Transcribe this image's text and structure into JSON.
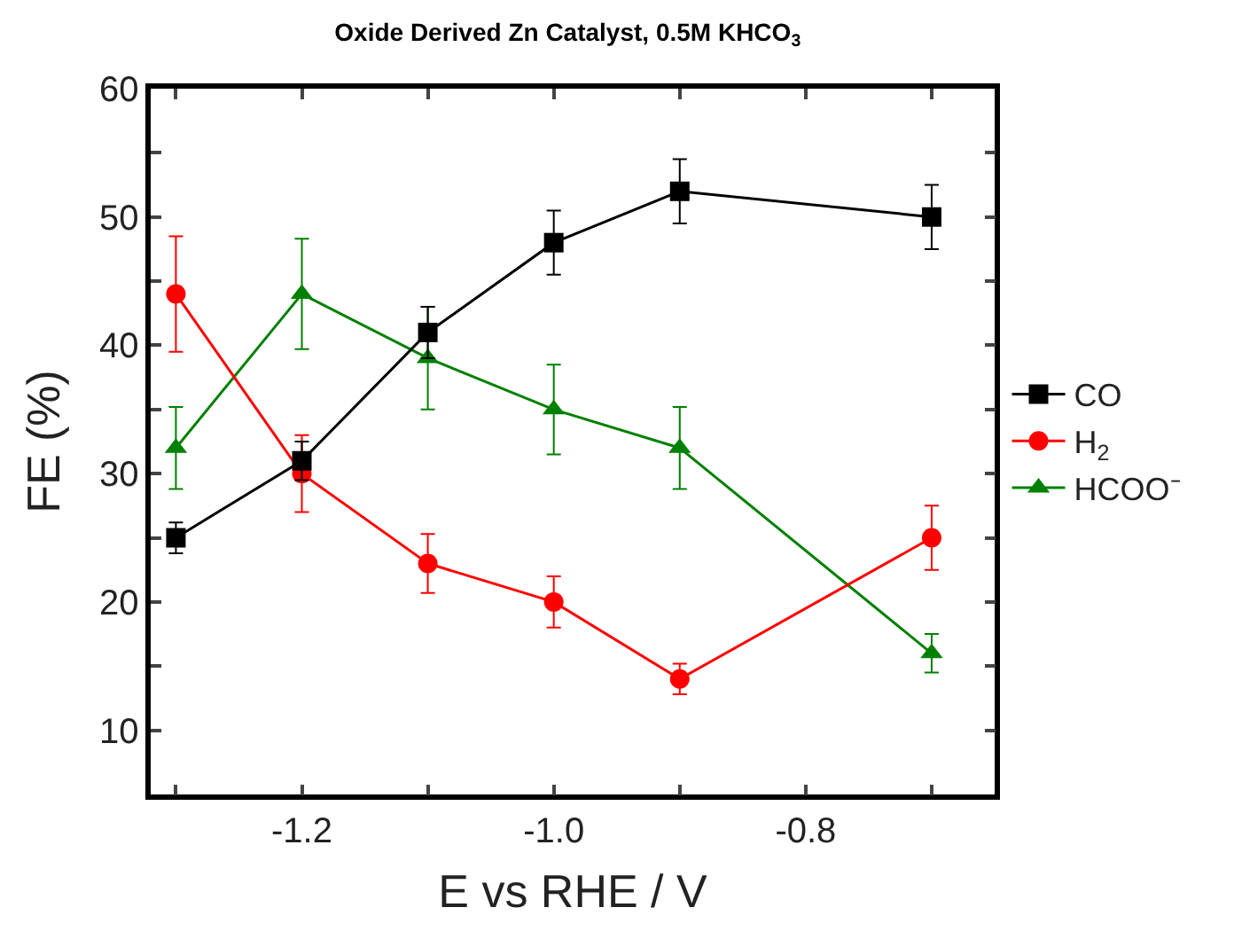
{
  "chart_data": {
    "type": "line",
    "title": "Oxide Derived Zn Catalyst, 0.5M KHCO$_{3}$",
    "xlabel": "E vs RHE / V",
    "ylabel": "FE (%)",
    "x": [
      -1.3,
      -1.2,
      -1.1,
      -1.0,
      -0.9,
      -0.7
    ],
    "series": [
      {
        "name": "CO",
        "color": "#000000",
        "marker": "square",
        "values": [
          25,
          31,
          41,
          48,
          52,
          50
        ],
        "errors": [
          1.2,
          1.5,
          2,
          2.5,
          2.5,
          2.5
        ]
      },
      {
        "name": "H$_{2}$",
        "color": "#ff0000",
        "marker": "circle",
        "values": [
          44,
          30,
          23,
          20,
          14,
          25
        ],
        "errors": [
          4.5,
          3,
          2.3,
          2,
          1.2,
          2.5
        ]
      },
      {
        "name": "HCOO⁻",
        "color": "#008000",
        "marker": "triangle",
        "values": [
          32,
          44,
          39,
          35,
          32,
          16
        ],
        "errors": [
          3.2,
          4.3,
          4,
          3.5,
          3.2,
          1.5
        ]
      }
    ],
    "xlim": [
      -1.32,
      -0.65
    ],
    "xticks": [
      {
        "value": -1.3,
        "label": null
      },
      {
        "value": -1.2,
        "label": "-1.2"
      },
      {
        "value": -1.1,
        "label": null
      },
      {
        "value": -1.0,
        "label": "-1.0"
      },
      {
        "value": -0.9,
        "label": null
      },
      {
        "value": -0.8,
        "label": "-0.8"
      },
      {
        "value": -0.7,
        "label": null
      }
    ],
    "ylim": [
      5,
      60
    ],
    "yticks": [
      10,
      {
        "value": 15,
        "label": null
      },
      20,
      {
        "value": 25,
        "label": null
      },
      30,
      {
        "value": 35,
        "label": null
      },
      40,
      {
        "value": 45,
        "label": null
      },
      50,
      {
        "value": 55,
        "label": null
      },
      60
    ],
    "legend": "right",
    "line_style": "solid"
  }
}
